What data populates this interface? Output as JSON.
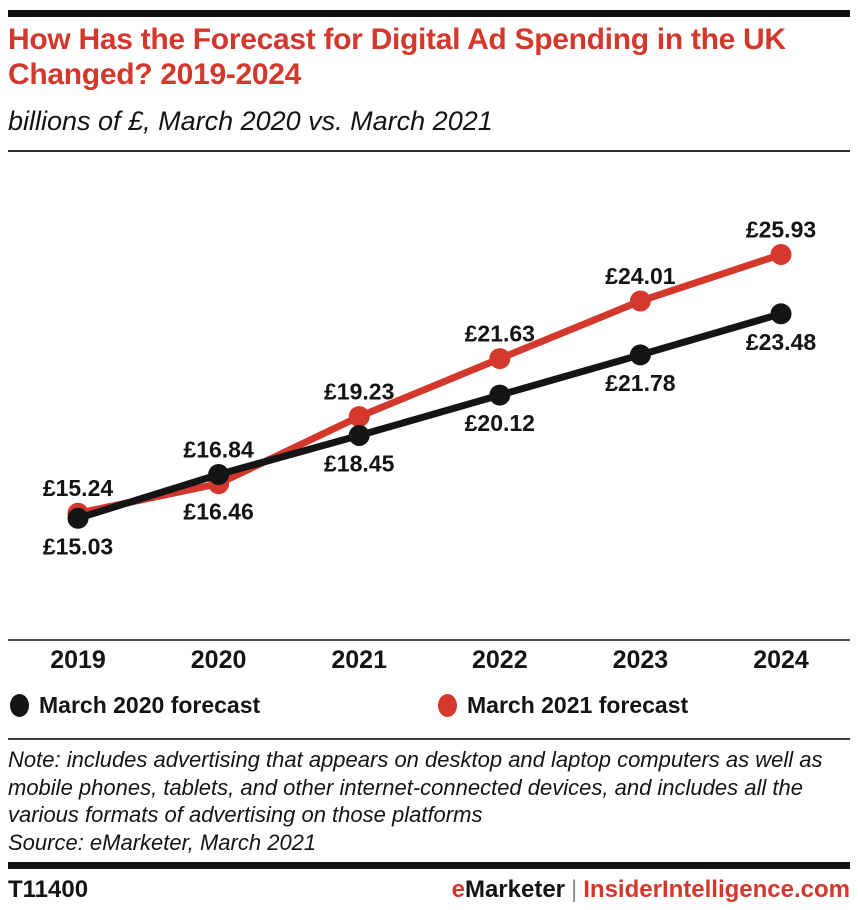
{
  "header": {
    "title": "How Has the Forecast for Digital Ad Spending in the UK Changed? 2019-2024",
    "subtitle": "billions of £, March 2020 vs. March 2021"
  },
  "chart_data": {
    "type": "line",
    "title": "How Has the Forecast for Digital Ad Spending in the UK Changed? 2019-2024",
    "subtitle": "billions of £, March 2020 vs. March 2021",
    "unit": "billions of £",
    "unit_prefix": "£",
    "categories": [
      "2019",
      "2020",
      "2021",
      "2022",
      "2023",
      "2024"
    ],
    "series": [
      {
        "name": "March 2020 forecast",
        "color": "#141414",
        "values": [
          15.03,
          16.84,
          18.45,
          20.12,
          21.78,
          23.48
        ],
        "data_labels": [
          "£15.03",
          "£16.84",
          "£18.45",
          "£20.12",
          "£21.78",
          "£23.48"
        ],
        "label_positions": [
          "below",
          "above",
          "below",
          "below",
          "below",
          "below"
        ]
      },
      {
        "name": "March 2021 forecast",
        "color": "#d4382c",
        "values": [
          15.24,
          16.46,
          19.23,
          21.63,
          24.01,
          25.93
        ],
        "data_labels": [
          "£15.24",
          "£16.46",
          "£19.23",
          "£21.63",
          "£24.01",
          "£25.93"
        ],
        "label_positions": [
          "above",
          "below",
          "above",
          "above",
          "above",
          "above"
        ]
      }
    ],
    "ylim": [
      10,
      27.5
    ],
    "grid": false,
    "x_axis_line": true,
    "legend_position": "bottom"
  },
  "footnote": {
    "note": "Note: includes advertising that appears on desktop and laptop computers as well as mobile phones, tablets, and other internet-connected devices, and includes all the various formats of advertising on those platforms",
    "source": "Source: eMarketer, March 2021"
  },
  "footer": {
    "tag": "T11400",
    "brand_e": "e",
    "brand_rest": "Marketer",
    "separator": "|",
    "site": "InsiderIntelligence.com"
  },
  "colors": {
    "accent_red": "#d4382c",
    "text_black": "#141414"
  }
}
